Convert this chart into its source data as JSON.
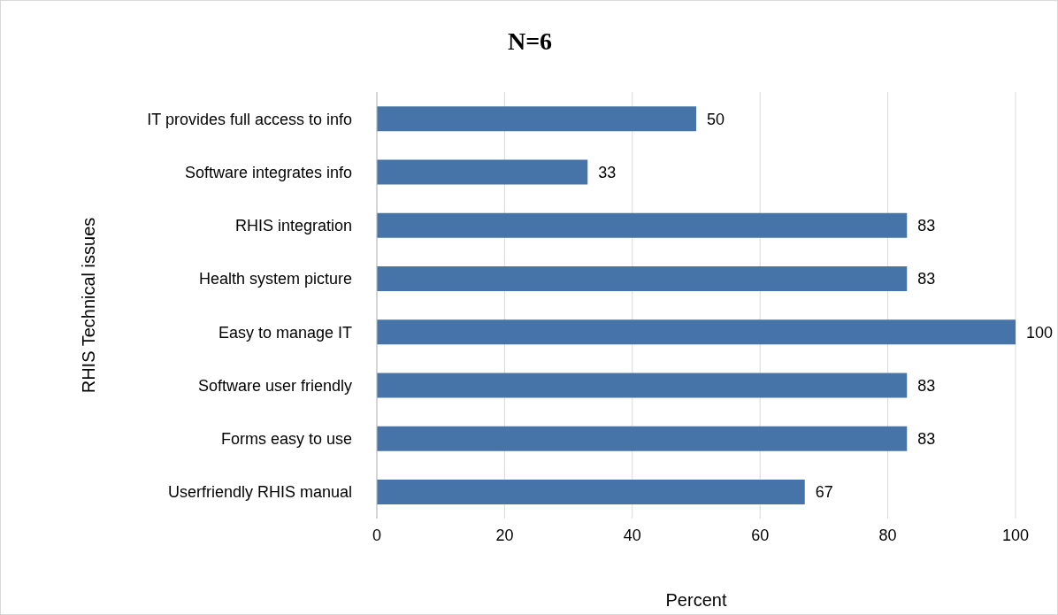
{
  "chart_data": {
    "type": "bar",
    "orientation": "horizontal",
    "title": "N=6",
    "xlabel": "Percent",
    "ylabel": "RHIS Technical issues",
    "categories": [
      "IT provides full access to info",
      "Software integrates info",
      "RHIS integration",
      "Health system picture",
      "Easy to manage IT",
      "Software user friendly",
      "Forms easy to use",
      "Userfriendly RHIS manual"
    ],
    "values": [
      50,
      33,
      83,
      83,
      100,
      83,
      83,
      67
    ],
    "color": "#4674a8",
    "xlim": [
      0,
      100
    ],
    "xticks": [
      0,
      20,
      40,
      60,
      80,
      100
    ],
    "grid": "x",
    "data_labels": true
  }
}
